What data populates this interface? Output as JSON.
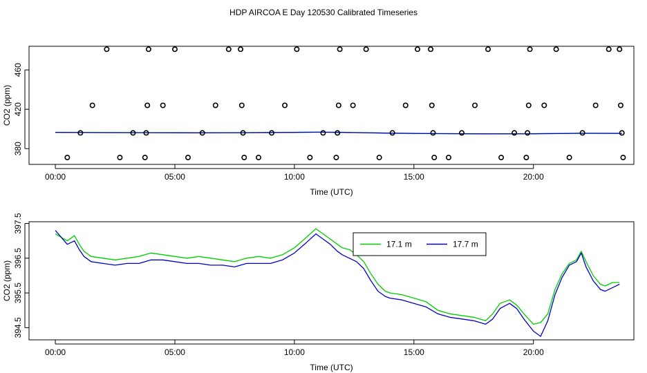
{
  "title": "HDP AIRCOA E  Day 120530  Calibrated Timeseries",
  "chart_data": [
    {
      "type": "scatter",
      "xlabel": "Time (UTC)",
      "ylabel": "CO2 (ppm)",
      "xlim": [
        -1.1,
        24.2
      ],
      "ylim": [
        364,
        484
      ],
      "xticks": [
        0,
        5,
        10,
        15,
        20
      ],
      "xtick_labels": [
        "00:00",
        "05:00",
        "10:00",
        "15:00",
        "20:00"
      ],
      "yticks": [
        380,
        420,
        460
      ],
      "ytick_labels": [
        "380",
        "420",
        "460"
      ],
      "points": [
        {
          "x": 0.5,
          "y": 371
        },
        {
          "x": 1.05,
          "y": 396
        },
        {
          "x": 1.55,
          "y": 424
        },
        {
          "x": 2.15,
          "y": 481
        },
        {
          "x": 2.7,
          "y": 371
        },
        {
          "x": 3.25,
          "y": 396
        },
        {
          "x": 3.75,
          "y": 371
        },
        {
          "x": 3.8,
          "y": 396
        },
        {
          "x": 3.85,
          "y": 424
        },
        {
          "x": 3.9,
          "y": 481
        },
        {
          "x": 4.5,
          "y": 424
        },
        {
          "x": 5.0,
          "y": 481
        },
        {
          "x": 5.55,
          "y": 371
        },
        {
          "x": 6.15,
          "y": 396
        },
        {
          "x": 6.7,
          "y": 424
        },
        {
          "x": 7.25,
          "y": 481
        },
        {
          "x": 7.75,
          "y": 481
        },
        {
          "x": 7.8,
          "y": 424
        },
        {
          "x": 7.85,
          "y": 396
        },
        {
          "x": 7.9,
          "y": 371
        },
        {
          "x": 8.5,
          "y": 371
        },
        {
          "x": 9.05,
          "y": 396
        },
        {
          "x": 9.6,
          "y": 424
        },
        {
          "x": 10.1,
          "y": 481
        },
        {
          "x": 10.65,
          "y": 371
        },
        {
          "x": 11.2,
          "y": 396
        },
        {
          "x": 11.75,
          "y": 371
        },
        {
          "x": 11.8,
          "y": 396
        },
        {
          "x": 11.85,
          "y": 424
        },
        {
          "x": 11.9,
          "y": 481
        },
        {
          "x": 12.45,
          "y": 424
        },
        {
          "x": 13.0,
          "y": 481
        },
        {
          "x": 13.55,
          "y": 371
        },
        {
          "x": 14.1,
          "y": 396
        },
        {
          "x": 14.65,
          "y": 424
        },
        {
          "x": 15.15,
          "y": 481
        },
        {
          "x": 15.7,
          "y": 481
        },
        {
          "x": 15.75,
          "y": 424
        },
        {
          "x": 15.8,
          "y": 396
        },
        {
          "x": 15.85,
          "y": 371
        },
        {
          "x": 16.45,
          "y": 371
        },
        {
          "x": 17.0,
          "y": 396
        },
        {
          "x": 17.55,
          "y": 424
        },
        {
          "x": 18.1,
          "y": 481
        },
        {
          "x": 18.65,
          "y": 371
        },
        {
          "x": 19.2,
          "y": 396
        },
        {
          "x": 19.7,
          "y": 371
        },
        {
          "x": 19.75,
          "y": 396
        },
        {
          "x": 19.8,
          "y": 424
        },
        {
          "x": 19.85,
          "y": 481
        },
        {
          "x": 20.45,
          "y": 424
        },
        {
          "x": 20.95,
          "y": 481
        },
        {
          "x": 21.5,
          "y": 371
        },
        {
          "x": 22.05,
          "y": 396
        },
        {
          "x": 22.6,
          "y": 424
        },
        {
          "x": 23.15,
          "y": 481
        },
        {
          "x": 23.6,
          "y": 481
        },
        {
          "x": 23.65,
          "y": 424
        },
        {
          "x": 23.7,
          "y": 396
        },
        {
          "x": 23.75,
          "y": 371
        }
      ],
      "series": [
        {
          "name": "17.1 m",
          "color": "#00cc00",
          "x": [
            0,
            2,
            4,
            6,
            8,
            10,
            11,
            12,
            14,
            16,
            18,
            20,
            22,
            23.7
          ],
          "values": [
            396.6,
            396.4,
            396.3,
            396.2,
            396.3,
            396.6,
            396.8,
            396.6,
            395.8,
            395.3,
            395.1,
            395.2,
            395.7,
            395.6
          ]
        },
        {
          "name": "17.7 m",
          "color": "#0000cc",
          "x": [
            0,
            2,
            4,
            6,
            8,
            10,
            11,
            12,
            14,
            16,
            18,
            20,
            22,
            23.7
          ],
          "values": [
            396.5,
            396.3,
            396.2,
            396.1,
            396.2,
            396.5,
            396.7,
            396.5,
            395.7,
            395.2,
            395.0,
            395.1,
            395.6,
            395.5
          ]
        }
      ]
    },
    {
      "type": "line",
      "xlabel": "Time (UTC)",
      "ylabel": "CO2 (ppm)",
      "xlim": [
        -1.1,
        24.2
      ],
      "ylim": [
        394.15,
        397.55
      ],
      "xticks": [
        0,
        5,
        10,
        15,
        20
      ],
      "xtick_labels": [
        "00:00",
        "05:00",
        "10:00",
        "15:00",
        "20:00"
      ],
      "yticks": [
        394.5,
        395.5,
        396.5,
        397.5
      ],
      "ytick_labels": [
        "394.5",
        "395.5",
        "396.5",
        "397.5"
      ],
      "legend": {
        "position": "top-right",
        "entries": [
          "17.1 m",
          "17.7 m"
        ]
      },
      "series": [
        {
          "name": "17.1 m",
          "color": "#00cc00",
          "x": [
            0,
            0.5,
            0.8,
            1.0,
            1.2,
            1.5,
            2.0,
            2.5,
            3.0,
            3.5,
            4.0,
            4.5,
            5.0,
            5.5,
            6.0,
            6.5,
            7.0,
            7.5,
            8.0,
            8.5,
            9.0,
            9.5,
            10.0,
            10.5,
            10.9,
            11.2,
            11.5,
            11.8,
            12.0,
            12.3,
            12.6,
            12.9,
            13.2,
            13.5,
            13.8,
            14.0,
            14.5,
            15.0,
            15.5,
            16.0,
            16.5,
            17.0,
            17.5,
            18.0,
            18.3,
            18.6,
            19.0,
            19.3,
            19.6,
            20.0,
            20.3,
            20.6,
            20.9,
            21.2,
            21.5,
            21.8,
            22.0,
            22.2,
            22.5,
            22.8,
            23.0,
            23.3,
            23.6
          ],
          "values": [
            397.2,
            397.0,
            397.15,
            396.9,
            396.7,
            396.55,
            396.5,
            396.45,
            396.5,
            396.55,
            396.65,
            396.6,
            396.55,
            396.5,
            396.55,
            396.5,
            396.45,
            396.4,
            396.5,
            396.55,
            396.5,
            396.6,
            396.8,
            397.1,
            397.35,
            397.2,
            397.05,
            396.9,
            396.8,
            396.75,
            396.6,
            396.4,
            396.05,
            395.75,
            395.55,
            395.5,
            395.45,
            395.35,
            395.25,
            395.0,
            394.9,
            394.85,
            394.8,
            394.7,
            394.9,
            395.2,
            395.3,
            395.15,
            394.9,
            394.6,
            394.65,
            394.9,
            395.6,
            396.05,
            396.35,
            396.45,
            396.7,
            396.4,
            396.0,
            395.75,
            395.7,
            395.8,
            395.8
          ]
        },
        {
          "name": "17.7 m",
          "color": "#0000cc",
          "x": [
            0,
            0.5,
            0.8,
            1.0,
            1.2,
            1.5,
            2.0,
            2.5,
            3.0,
            3.5,
            4.0,
            4.5,
            5.0,
            5.5,
            6.0,
            6.5,
            7.0,
            7.5,
            8.0,
            8.5,
            9.0,
            9.5,
            10.0,
            10.5,
            10.9,
            11.2,
            11.5,
            11.8,
            12.0,
            12.3,
            12.6,
            12.9,
            13.2,
            13.5,
            13.8,
            14.0,
            14.5,
            15.0,
            15.5,
            16.0,
            16.5,
            17.0,
            17.5,
            18.0,
            18.3,
            18.6,
            19.0,
            19.3,
            19.6,
            20.0,
            20.3,
            20.6,
            20.9,
            21.2,
            21.5,
            21.8,
            22.0,
            22.2,
            22.5,
            22.8,
            23.0,
            23.3,
            23.6
          ],
          "values": [
            397.3,
            396.9,
            397.0,
            396.75,
            396.55,
            396.4,
            396.35,
            396.3,
            396.35,
            396.35,
            396.45,
            396.45,
            396.4,
            396.35,
            396.35,
            396.3,
            396.3,
            396.25,
            396.35,
            396.35,
            396.35,
            396.45,
            396.65,
            396.95,
            397.2,
            397.05,
            396.9,
            396.7,
            396.6,
            396.5,
            396.4,
            396.2,
            395.85,
            395.55,
            395.4,
            395.35,
            395.3,
            395.2,
            395.1,
            394.9,
            394.8,
            394.75,
            394.7,
            394.6,
            394.75,
            395.05,
            395.2,
            395.05,
            394.75,
            394.4,
            394.25,
            394.7,
            395.45,
            395.95,
            396.3,
            396.4,
            396.65,
            396.25,
            395.85,
            395.6,
            395.55,
            395.65,
            395.75
          ]
        }
      ]
    }
  ]
}
